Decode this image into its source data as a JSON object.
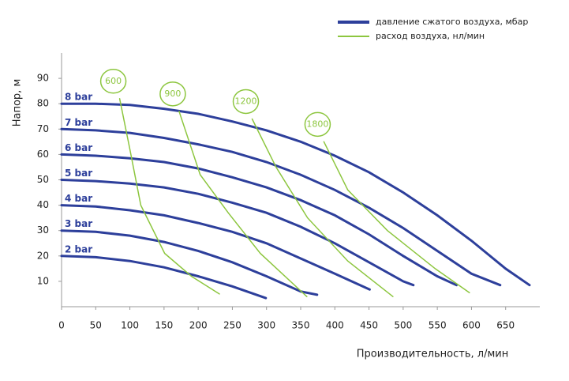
{
  "chart_data": {
    "type": "line",
    "xlabel": "Производительность, л/мин",
    "ylabel": "Напор, м",
    "xlim": [
      0,
      700
    ],
    "ylim": [
      0,
      100
    ],
    "xticks": [
      0,
      50,
      100,
      150,
      200,
      250,
      300,
      350,
      400,
      450,
      500,
      550,
      600,
      650
    ],
    "yticks": [
      10,
      20,
      30,
      40,
      50,
      60,
      70,
      80,
      90
    ],
    "legend": [
      {
        "name": "давление сжатого воздуха, мбар",
        "color": "#2d3f9b"
      },
      {
        "name": "расход воздуха, нл/мин",
        "color": "#8dc63f"
      }
    ],
    "series": [
      {
        "name": "8 bar",
        "color": "#2d3f9b",
        "x": [
          0,
          50,
          100,
          150,
          200,
          250,
          300,
          350,
          400,
          450,
          500,
          550,
          600,
          650,
          685
        ],
        "values": [
          80,
          80,
          79.5,
          78,
          76,
          73,
          69.5,
          65,
          59.5,
          53,
          45,
          36,
          26,
          15,
          8.5
        ]
      },
      {
        "name": "7 bar",
        "color": "#2d3f9b",
        "x": [
          0,
          50,
          100,
          150,
          200,
          250,
          300,
          350,
          400,
          450,
          500,
          550,
          600,
          642
        ],
        "values": [
          70,
          69.5,
          68.5,
          66.5,
          64,
          61,
          57,
          52,
          46,
          39,
          31,
          22,
          13,
          8.5
        ]
      },
      {
        "name": "6 bar",
        "color": "#2d3f9b",
        "x": [
          0,
          50,
          100,
          150,
          200,
          250,
          300,
          350,
          400,
          450,
          500,
          550,
          578
        ],
        "values": [
          60,
          59.5,
          58.5,
          57,
          54.5,
          51,
          47,
          42,
          36,
          28.5,
          20,
          12,
          8.5
        ]
      },
      {
        "name": "5 bar",
        "color": "#2d3f9b",
        "x": [
          0,
          50,
          100,
          150,
          200,
          250,
          300,
          350,
          400,
          450,
          500,
          515
        ],
        "values": [
          50,
          49.5,
          48.5,
          47,
          44.5,
          41,
          37,
          31.5,
          25,
          17.5,
          10,
          8.5
        ]
      },
      {
        "name": "4 bar",
        "color": "#2d3f9b",
        "x": [
          0,
          50,
          100,
          150,
          200,
          250,
          300,
          350,
          400,
          451
        ],
        "values": [
          40,
          39.5,
          38,
          36,
          33,
          29.5,
          25,
          19,
          13,
          6.8
        ]
      },
      {
        "name": "3 bar",
        "color": "#2d3f9b",
        "x": [
          0,
          50,
          100,
          150,
          200,
          250,
          300,
          350,
          374
        ],
        "values": [
          30,
          29.5,
          28,
          25.5,
          22,
          17.5,
          12,
          6,
          4.7
        ]
      },
      {
        "name": "2 bar",
        "color": "#2d3f9b",
        "x": [
          0,
          50,
          100,
          150,
          200,
          250,
          299
        ],
        "values": [
          20,
          19.5,
          18,
          15.5,
          12,
          8,
          3.4
        ]
      },
      {
        "name": "600",
        "color": "#8dc63f",
        "x": [
          85,
          100,
          116,
          151,
          190,
          231
        ],
        "values": [
          82,
          62,
          40,
          21,
          12,
          5
        ]
      },
      {
        "name": "900",
        "color": "#8dc63f",
        "x": [
          172,
          203,
          244,
          291,
          359
        ],
        "values": [
          77,
          52,
          37,
          21,
          4
        ]
      },
      {
        "name": "1200",
        "color": "#8dc63f",
        "x": [
          279,
          314,
          360,
          419,
          485
        ],
        "values": [
          74,
          55,
          35,
          18,
          4
        ]
      },
      {
        "name": "1800",
        "color": "#8dc63f",
        "x": [
          384,
          419,
          477,
          547,
          597
        ],
        "values": [
          65,
          46,
          30,
          15,
          5.5
        ]
      }
    ]
  }
}
